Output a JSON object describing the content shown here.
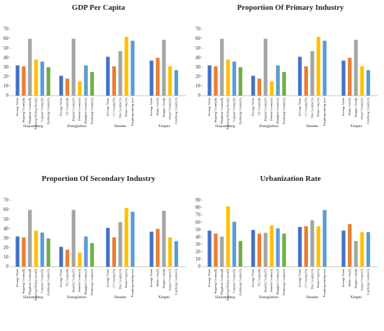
{
  "chart_data": [
    {
      "type": "bar",
      "title": "GDP Per Capita",
      "ylim": [
        0,
        70
      ],
      "yticks": [
        0,
        10,
        20,
        30,
        40,
        50,
        60,
        70
      ],
      "colors": [
        "#4472c4",
        "#ed7d31",
        "#a5a5a5",
        "#ffc000",
        "#5b9bd5",
        "#70ad47"
      ],
      "groups": [
        {
          "name": "Shijiazhuang",
          "categories": [
            "Average Value",
            "Jingxing County(4)",
            "Pingshan County(4)",
            "Jingxing Mining Area(2)",
            "Luquan County(2)",
            "Zanhuang County(1)"
          ],
          "values": [
            32,
            31,
            60,
            38,
            36,
            30
          ]
        },
        {
          "name": "Zhangjiakou",
          "categories": [
            "Average Value",
            "Yu County(4)",
            "Huailai County(7)",
            "Zhuolu County(1)",
            "Zhangbei County(1)",
            "Yuanyang County(1)"
          ],
          "values": [
            21,
            18,
            60,
            15,
            32,
            25
          ]
        },
        {
          "name": "Handan",
          "categories": [
            "Average Value",
            "Ci County(15)",
            "She County(11)",
            "Wuan City(12)",
            "Fengfeng mining area"
          ],
          "values": [
            41,
            31,
            47,
            62,
            58
          ]
        },
        {
          "name": "Xingtai",
          "categories": [
            "Average Value",
            "Shahe City(2)",
            "Xingtai City(4)",
            "neiqiu County(1)",
            "Lincheng County(1)"
          ],
          "values": [
            37,
            40,
            59,
            31,
            27
          ]
        }
      ]
    },
    {
      "type": "bar",
      "title": "Proportion Of Primary Industry",
      "ylim": [
        0,
        70
      ],
      "yticks": [
        0,
        10,
        20,
        30,
        40,
        50,
        60,
        70
      ],
      "colors": [
        "#4472c4",
        "#ed7d31",
        "#a5a5a5",
        "#ffc000",
        "#5b9bd5",
        "#70ad47"
      ],
      "groups": [
        {
          "name": "Shijiazhuang",
          "categories": [
            "Average Value",
            "Jingxing County(4)",
            "Pingshan County(4)",
            "Jingxing Mining Area(2)",
            "Luquan County(2)",
            "Zanhuang County(1)"
          ],
          "values": [
            32,
            31,
            60,
            38,
            36,
            30
          ]
        },
        {
          "name": "Zhangjiakou",
          "categories": [
            "Average Value",
            "Yu County(4)",
            "Huailai County(7)",
            "Zhuolu County(1)",
            "Zhangbei County(1)",
            "Yuanyang County(1)"
          ],
          "values": [
            21,
            18,
            60,
            15,
            32,
            25
          ]
        },
        {
          "name": "Handan",
          "categories": [
            "Average Value",
            "Ci County(15)",
            "She County(11)",
            "Wuan City(12)",
            "Fengfeng mining area"
          ],
          "values": [
            41,
            31,
            47,
            62,
            58
          ]
        },
        {
          "name": "Xingtai",
          "categories": [
            "Average Value",
            "Shahe City(2)",
            "Xingtai City(4)",
            "neiqiu County(1)",
            "Lincheng County(1)"
          ],
          "values": [
            37,
            40,
            59,
            31,
            27
          ]
        }
      ]
    },
    {
      "type": "bar",
      "title": "Proportion Of Secondary Industry",
      "ylim": [
        0,
        70
      ],
      "yticks": [
        0,
        10,
        20,
        30,
        40,
        50,
        60,
        70
      ],
      "colors": [
        "#4472c4",
        "#ed7d31",
        "#a5a5a5",
        "#ffc000",
        "#5b9bd5",
        "#70ad47"
      ],
      "groups": [
        {
          "name": "Shijiazhuang",
          "categories": [
            "Average Value",
            "Jingxing County(4)",
            "Pingshan County(4)",
            "Jingxing Mining Area(2)",
            "Luquan County(2)",
            "Zanhuang County(1)"
          ],
          "values": [
            32,
            31,
            60,
            38,
            36,
            30
          ]
        },
        {
          "name": "Zhangjiakou",
          "categories": [
            "Average Value",
            "Yu County(4)",
            "Huailai County(7)",
            "Zhuolu County(1)",
            "Zhangbei County(1)",
            "Yuanyang County(1)"
          ],
          "values": [
            21,
            18,
            60,
            15,
            32,
            25
          ]
        },
        {
          "name": "Handan",
          "categories": [
            "Average Value",
            "Ci County(15)",
            "She County(11)",
            "Wuan City(12)",
            "Fengfeng mining area"
          ],
          "values": [
            41,
            31,
            47,
            62,
            58
          ]
        },
        {
          "name": "Xingtai",
          "categories": [
            "Average Value",
            "Shahe City(2)",
            "Xingtai City(4)",
            "neiqiu County(1)",
            "Lincheng County(1)"
          ],
          "values": [
            37,
            40,
            59,
            31,
            27
          ]
        }
      ]
    },
    {
      "type": "bar",
      "title": "Urbanization Rate",
      "ylim": [
        0,
        90
      ],
      "yticks": [
        0,
        10,
        20,
        30,
        40,
        50,
        60,
        70,
        80,
        90
      ],
      "colors": [
        "#4472c4",
        "#ed7d31",
        "#a5a5a5",
        "#ffc000",
        "#5b9bd5",
        "#70ad47"
      ],
      "groups": [
        {
          "name": "Shijiazhuang",
          "categories": [
            "Average Value",
            "Jingxing County(4)",
            "Pingshan County(4)",
            "Jingxing Mining Area(2)",
            "Luquan County(2)",
            "Zanhuang County(1)"
          ],
          "values": [
            49,
            45,
            41,
            82,
            61,
            35
          ]
        },
        {
          "name": "Zhangjiakou",
          "categories": [
            "Average Value",
            "Yu County(4)",
            "Huailai County(7)",
            "Zhuolu County(1)",
            "Zhangbei County(1)",
            "Yuanyang County(1)"
          ],
          "values": [
            50,
            45,
            46,
            56,
            52,
            45
          ]
        },
        {
          "name": "Handan",
          "categories": [
            "Average Value",
            "Ci County(15)",
            "She County(11)",
            "Wuan City(12)",
            "Fengfeng mining area"
          ],
          "values": [
            54,
            55,
            63,
            55,
            77
          ]
        },
        {
          "name": "Xingtai",
          "categories": [
            "Average Value",
            "Shahe City(2)",
            "Xingtai City(4)",
            "neiqiu County(1)",
            "Lincheng County(1)"
          ],
          "values": [
            49,
            58,
            35,
            47,
            47
          ]
        }
      ]
    }
  ]
}
